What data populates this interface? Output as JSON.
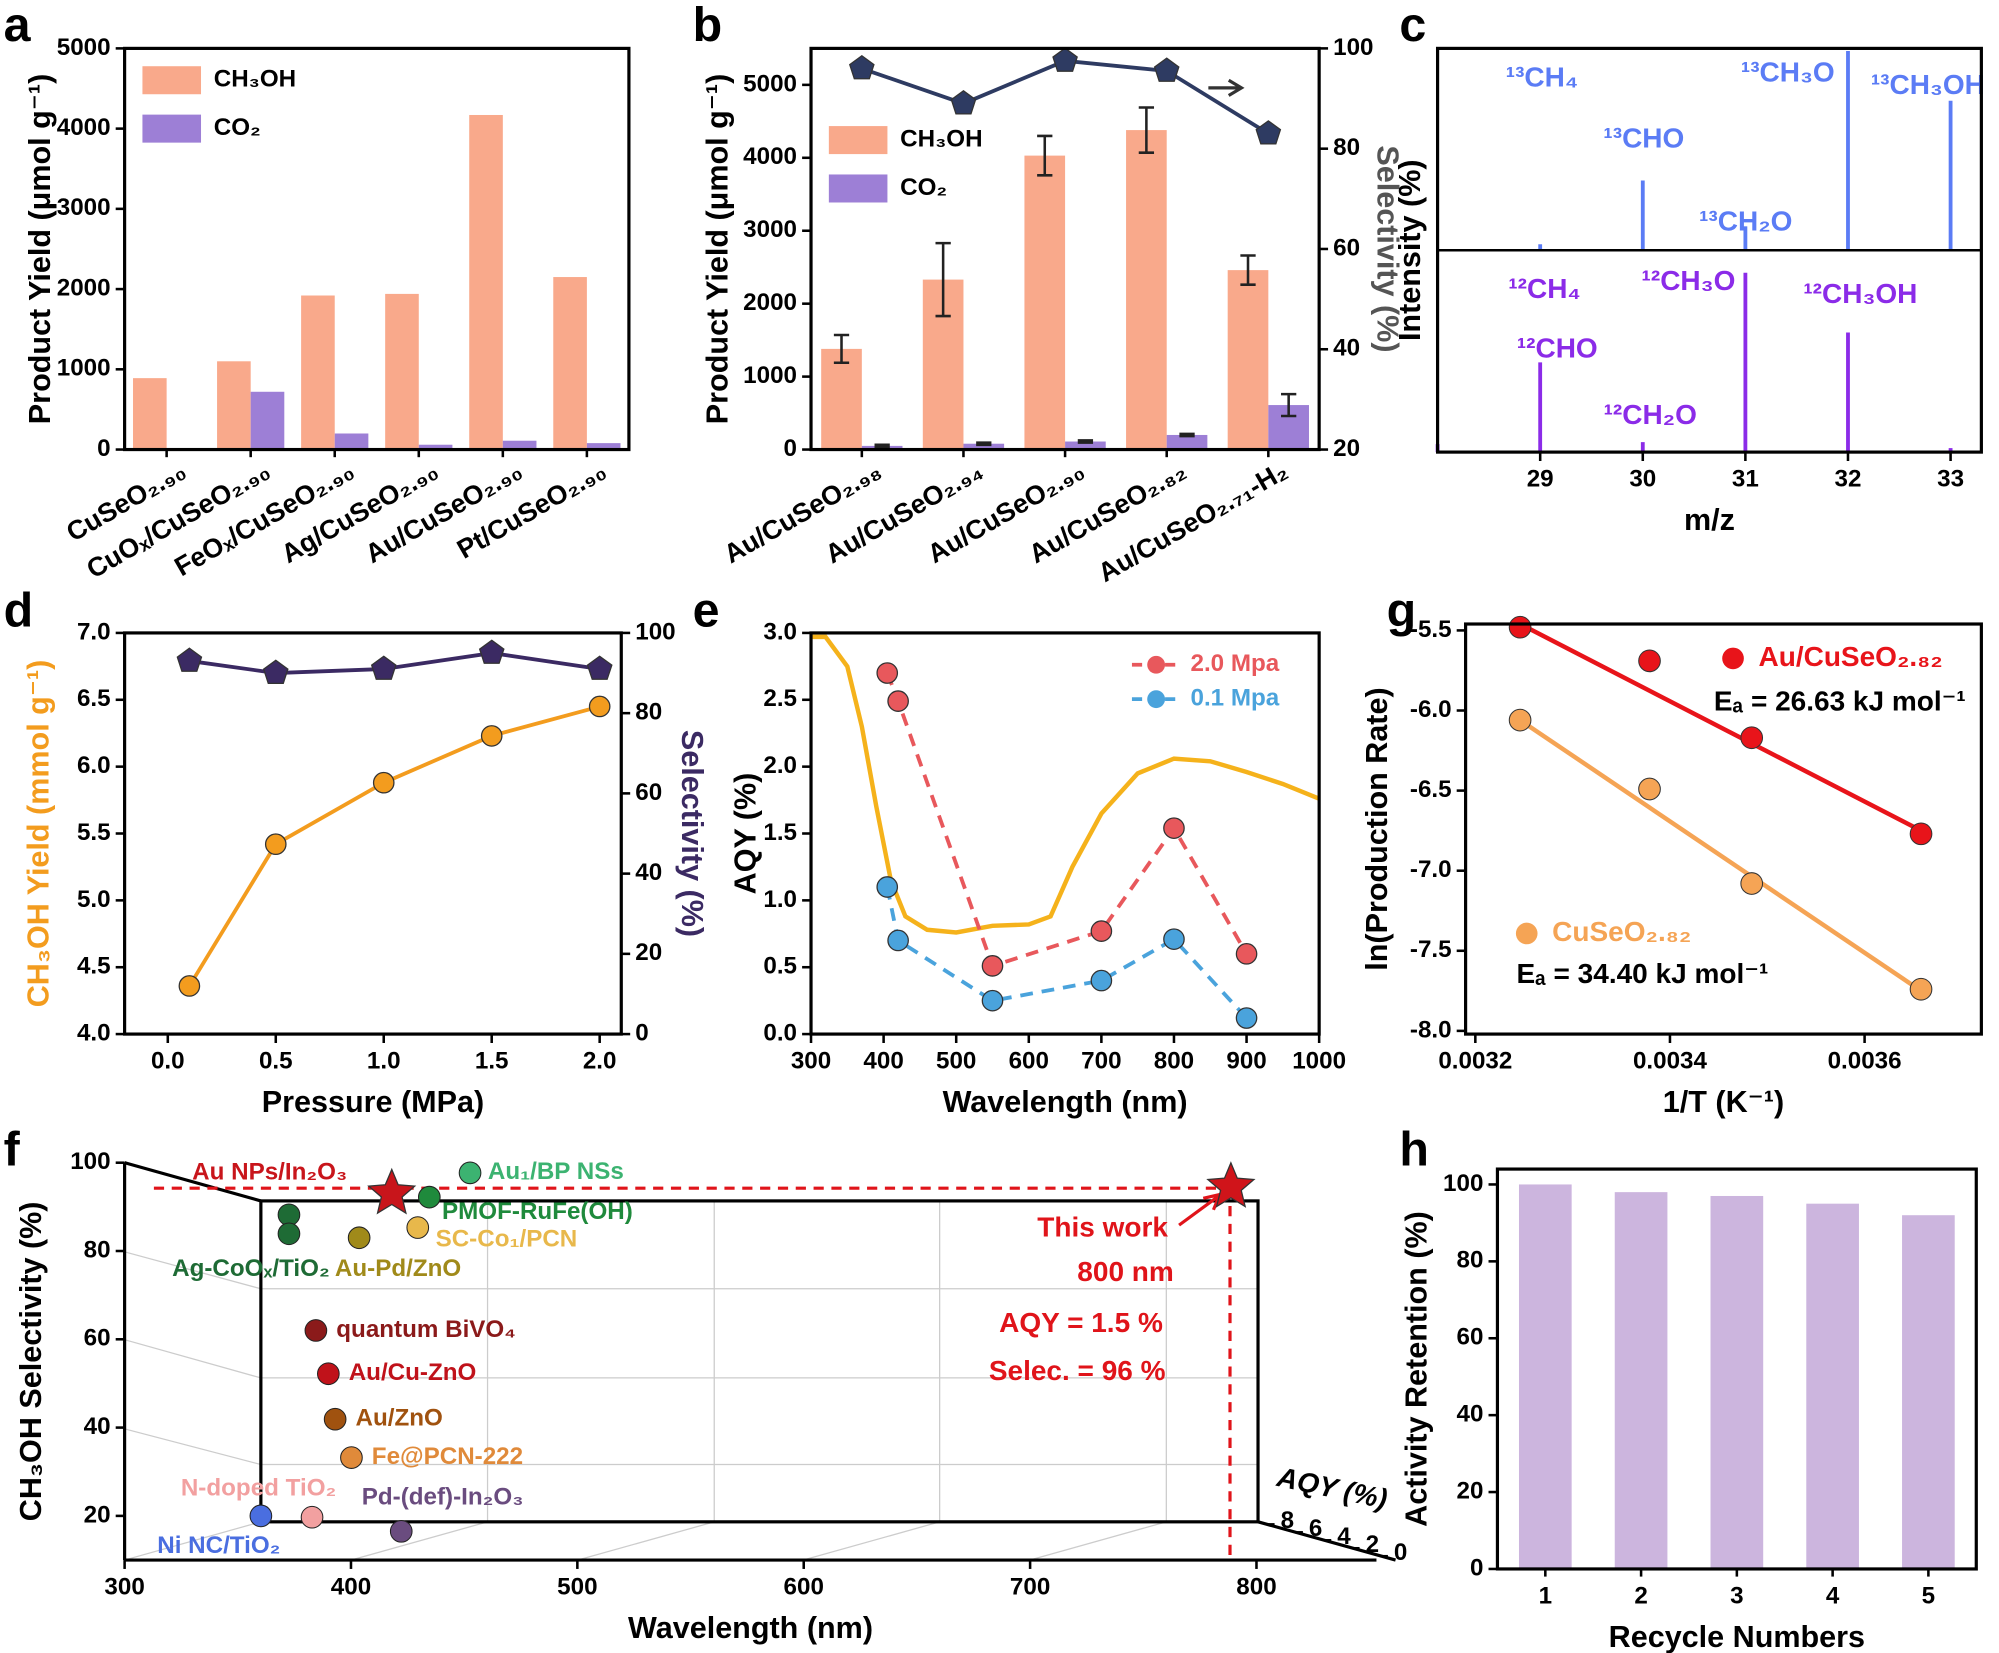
{
  "chart_data": [
    {
      "panel": "a",
      "type": "bar",
      "categories": [
        "CuSeO₂.₉₀",
        "CuOₓ/CuSeO₂.₉₀",
        "FeOₓ/CuSeO₂.₉₀",
        "Ag/CuSeO₂.₉₀",
        "Au/CuSeO₂.₉₀",
        "Pt/CuSeO₂.₉₀"
      ],
      "ylabel": "Product Yield (μmol g⁻¹)",
      "ylim": [
        0,
        5000
      ],
      "yticks": [
        0,
        1000,
        2000,
        3000,
        4000,
        5000
      ],
      "legend": "upper left",
      "series": [
        {
          "name": "CH₃OH",
          "color": "#f9a98b",
          "values": [
            890,
            1100,
            1920,
            1940,
            4170,
            2150
          ]
        },
        {
          "name": "CO₂",
          "color": "#9d7fd6",
          "values": [
            0,
            720,
            200,
            60,
            110,
            80
          ]
        }
      ]
    },
    {
      "panel": "b",
      "type": "bar",
      "categories": [
        "Au/CuSeO₂.₉₈",
        "Au/CuSeO₂.₉₄",
        "Au/CuSeO₂.₉₀",
        "Au/CuSeO₂.₈₂",
        "Au/CuSeO₂.₇₁-H₂"
      ],
      "ylabel": "Product Yield (μmol g⁻¹)",
      "y2label": "Selectivity (%)",
      "ylim": [
        0,
        5500
      ],
      "yticks": [
        0,
        1000,
        2000,
        3000,
        4000,
        5000
      ],
      "y2lim": [
        20,
        100
      ],
      "y2ticks": [
        20,
        40,
        60,
        80,
        100
      ],
      "legend": "center left",
      "series": [
        {
          "name": "CH₃OH",
          "color": "#f9a98b",
          "values": [
            1380,
            2330,
            4030,
            4380,
            2460
          ],
          "errors": [
            190,
            500,
            270,
            310,
            200
          ]
        },
        {
          "name": "CO₂",
          "color": "#9d7fd6",
          "values": [
            50,
            80,
            110,
            200,
            610
          ],
          "errors": [
            15,
            15,
            15,
            15,
            150
          ]
        },
        {
          "color": "#2e3b62",
          "axis": "y2",
          "marker": "pentagon",
          "values": [
            96,
            89,
            97.5,
            95.5,
            83
          ]
        }
      ]
    },
    {
      "panel": "c",
      "type": "spectrum",
      "xlabel": "m/z",
      "ylabel": "Intensity (%)",
      "xlim": [
        28,
        33.3
      ],
      "xticks": [
        29,
        30,
        31,
        32,
        33
      ],
      "series": [
        {
          "color": "#5b7cf5",
          "x": [
            29,
            30,
            31,
            32,
            33
          ],
          "values": [
            0.03,
            0.35,
            0.12,
            1.0,
            0.75
          ],
          "annotations": [
            "¹³CH₄",
            "¹³CHO",
            "¹³CH₂O",
            "¹³CH₃O",
            "¹³CH₃OH"
          ]
        },
        {
          "color": "#8b2be8",
          "x": [
            28,
            29,
            30,
            31,
            32,
            33
          ],
          "values": [
            0.04,
            0.45,
            0.05,
            0.9,
            0.6,
            0.02
          ],
          "annotations": [
            "¹²CH₄",
            "¹²CHO",
            "¹²CH₃O",
            "¹²CH₂O",
            "¹²CH₃OH"
          ]
        }
      ]
    },
    {
      "panel": "d",
      "type": "line",
      "xlabel": "Pressure (MPa)",
      "ylabel": "CH₃OH Yield (mmol g⁻¹)",
      "y2label": "Selectivity (%)",
      "axis_colors": true,
      "x": [
        0.1,
        0.5,
        1.0,
        1.5,
        2.0
      ],
      "xlim": [
        -0.2,
        2.1
      ],
      "xticks": [
        {
          "value": 0,
          "label": "0.0"
        },
        0.5,
        {
          "value": 1,
          "label": "1.0"
        },
        1.5,
        {
          "value": 2,
          "label": "2.0"
        }
      ],
      "ylim": [
        4,
        7
      ],
      "yticks": [
        {
          "value": 4,
          "label": "4.0"
        },
        4.5,
        {
          "value": 5,
          "label": "5.0"
        },
        5.5,
        {
          "value": 6,
          "label": "6.0"
        },
        6.5,
        {
          "value": 7,
          "label": "7.0"
        }
      ],
      "y2lim": [
        0,
        100
      ],
      "y2ticks": [
        0,
        20,
        40,
        60,
        80,
        100
      ],
      "series": [
        {
          "color": "#f39c1e",
          "marker": "circle",
          "values": [
            4.36,
            5.42,
            5.88,
            6.23,
            6.45
          ]
        },
        {
          "color": "#3b2a63",
          "axis": "y2",
          "marker": "pentagon",
          "values": [
            93,
            90,
            91,
            95,
            91
          ]
        }
      ]
    },
    {
      "panel": "e",
      "type": "line",
      "xlabel": "Wavelength (nm)",
      "ylabel": "AQY (%)",
      "xlim": [
        300,
        1000
      ],
      "xticks": [
        300,
        400,
        500,
        600,
        700,
        800,
        900,
        1000
      ],
      "ylim": [
        0,
        3
      ],
      "yticks": [
        {
          "value": 0,
          "label": "0.0"
        },
        0.5,
        {
          "value": 1,
          "label": "1.0"
        },
        1.5,
        {
          "value": 2,
          "label": "2.0"
        },
        2.5,
        {
          "value": 3,
          "label": "3.0"
        }
      ],
      "legend": "upper right",
      "series": [
        {
          "color": "#f5b21b",
          "x": [
            300,
            320,
            350,
            370,
            390,
            410,
            430,
            460,
            500,
            550,
            600,
            630,
            660,
            700,
            750,
            800,
            850,
            900,
            950,
            1000
          ],
          "values": [
            2.97,
            2.97,
            2.75,
            2.3,
            1.7,
            1.15,
            0.88,
            0.78,
            0.76,
            0.81,
            0.82,
            0.88,
            1.25,
            1.65,
            1.95,
            2.06,
            2.04,
            1.96,
            1.87,
            1.76
          ]
        },
        {
          "name": "2.0 Mpa",
          "color": "#e8585c",
          "dashed": true,
          "marker": "circle",
          "x": [
            405,
            420,
            550,
            700,
            800,
            900
          ],
          "values": [
            2.7,
            2.49,
            0.51,
            0.77,
            1.54,
            0.6
          ]
        },
        {
          "name": "0.1 Mpa",
          "color": "#4aa3dc",
          "dashed": true,
          "marker": "circle",
          "x": [
            405,
            420,
            550,
            700,
            800,
            900
          ],
          "values": [
            1.1,
            0.7,
            0.25,
            0.4,
            0.71,
            0.12
          ]
        }
      ]
    },
    {
      "panel": "g",
      "type": "scatter",
      "xlabel": "1/T (K⁻¹)",
      "ylabel": "ln(Production Rate)",
      "xlim": [
        0.00319,
        0.00372
      ],
      "xticks": [
        0.0032,
        0.0034,
        0.0036
      ],
      "ylim": [
        -8.02,
        -5.46
      ],
      "yticks": [
        -5.5,
        {
          "value": -6,
          "label": "-6.0"
        },
        -6.5,
        {
          "value": -7,
          "label": "-7.0"
        },
        -7.5,
        {
          "value": -8,
          "label": "-8.0"
        }
      ],
      "series": [
        {
          "name": "Au/CuSeO₂.₈₂",
          "color": "#e8141a",
          "x": [
            0.003246,
            0.003379,
            0.003484,
            0.003658
          ],
          "values": [
            -5.48,
            -5.69,
            -6.17,
            -6.77
          ],
          "fit_x": [
            0.003246,
            0.003658
          ],
          "fit_values": [
            -5.46,
            -6.75
          ],
          "note": "Eₐ = 26.63 kJ mol⁻¹"
        },
        {
          "name": "CuSeO₂.₈₂",
          "color": "#f5a455",
          "x": [
            0.003246,
            0.003379,
            0.003484,
            0.003658
          ],
          "values": [
            -6.06,
            -6.49,
            -7.08,
            -7.74
          ],
          "fit_x": [
            0.003246,
            0.003658
          ],
          "fit_values": [
            -6.06,
            -7.75
          ],
          "note": "Eₐ = 34.40 kJ mol⁻¹"
        }
      ]
    },
    {
      "panel": "f",
      "type": "scatter3d",
      "xlabel": "Wavelength (nm)",
      "ylabel": "CH₃OH Selectivity (%)",
      "zlabel": "AQY (%)",
      "xlim": [
        300,
        853
      ],
      "xticks": [
        300,
        400,
        500,
        600,
        700,
        800
      ],
      "ylim": [
        10,
        100
      ],
      "yticks": [
        20,
        40,
        60,
        80,
        100
      ],
      "zlim": [
        0,
        8
      ],
      "zticks": [
        8,
        6,
        4,
        2,
        0
      ],
      "points": [
        {
          "name": "Au NPs/In₂O₃",
          "color": "#c8151b",
          "marker": "star",
          "x": 418,
          "y": 93
        },
        {
          "name": "Au₁/BP NSs",
          "color": "#3cb371",
          "x": 452.6,
          "y": 97.7
        },
        {
          "name": "PMOF-RuFe(OH)",
          "color": "#1f8a3c",
          "x": 434.6,
          "y": 92.2
        },
        {
          "name": "SC-Co₁/PCN",
          "color": "#e8b84b",
          "x": 429.5,
          "y": 85.3
        },
        {
          "name": "Au-Pd/ZnO",
          "color": "#a08a1a",
          "x": 403.6,
          "y": 83
        },
        {
          "name": "Ag-CoOₓ/TiO₂",
          "color": "#1e6b35",
          "x": 372.6,
          "y": 88.2
        },
        {
          "name": null,
          "color": "#1e6b35",
          "x": 372.6,
          "y": 83.9
        },
        {
          "name": "quantum BiVO₄",
          "color": "#8b1a1a",
          "x": 384.5,
          "y": 62
        },
        {
          "name": "Au/Cu-ZnO",
          "color": "#c0121a",
          "x": 390,
          "y": 52.2
        },
        {
          "name": "Au/ZnO",
          "color": "#a0520f",
          "x": 393,
          "y": 41.9
        },
        {
          "name": "Fe@PCN-222",
          "color": "#e08a3a",
          "x": 400.2,
          "y": 33.2
        },
        {
          "name": "N-doped TiO₂",
          "color": "#f2a0a0",
          "x": 382.8,
          "y": 19.7
        },
        {
          "name": "Pd-(def)-In₂O₃",
          "color": "#6a4c7f",
          "x": 422.2,
          "y": 16.5
        },
        {
          "name": "Ni NC/TiO₂",
          "color": "#4a6ee0",
          "x": 360.2,
          "y": 20
        },
        {
          "name": null,
          "color": "#d0141a",
          "marker": "star",
          "x": 788.7,
          "y": 94.5
        }
      ],
      "annotations": [
        "This work",
        "800 nm",
        "AQY = 1.5 %",
        "Selec. = 96 %"
      ]
    },
    {
      "panel": "h",
      "type": "bar",
      "xlabel": "Recycle Numbers",
      "ylabel": "Activity Retention (%)",
      "categories": [
        "1",
        "2",
        "3",
        "4",
        "5"
      ],
      "ylim": [
        0,
        104
      ],
      "yticks": [
        0,
        20,
        40,
        60,
        80,
        100
      ],
      "series": [
        {
          "color": "#ccb5de",
          "values": [
            100,
            98,
            97,
            95,
            92
          ]
        }
      ]
    }
  ]
}
